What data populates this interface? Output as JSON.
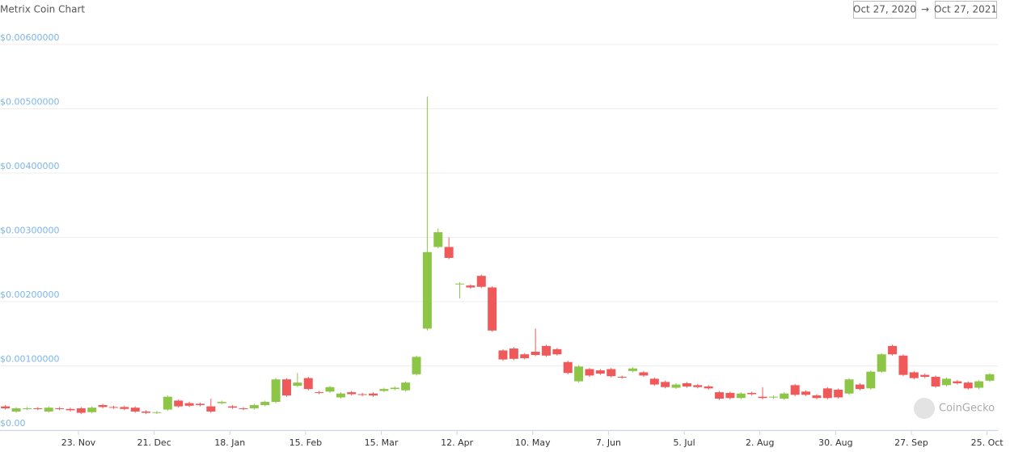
{
  "chart_data": {
    "type": "candlestick",
    "title": "Metrix Coin Chart",
    "range_from": "Oct 27, 2020",
    "range_arrow": "→",
    "range_to": "Oct 27, 2021",
    "watermark": "CoinGecko",
    "up_color": "#8dc647",
    "down_color": "#ef5959",
    "grid": true,
    "x": [
      "2020-10-27",
      "2020-10-31",
      "2020-11-04",
      "2020-11-08",
      "2020-11-12",
      "2020-11-16",
      "2020-11-20",
      "2020-11-24",
      "2020-11-28",
      "2020-12-02",
      "2020-12-06",
      "2020-12-10",
      "2020-12-14",
      "2020-12-18",
      "2020-12-22",
      "2020-12-26",
      "2020-12-30",
      "2021-01-03",
      "2021-01-07",
      "2021-01-11",
      "2021-01-15",
      "2021-01-19",
      "2021-01-23",
      "2021-01-27",
      "2021-01-31",
      "2021-02-04",
      "2021-02-08",
      "2021-02-12",
      "2021-02-16",
      "2021-02-20",
      "2021-02-24",
      "2021-02-28",
      "2021-03-04",
      "2021-03-08",
      "2021-03-12",
      "2021-03-16",
      "2021-03-20",
      "2021-03-24",
      "2021-03-28",
      "2021-04-01",
      "2021-04-05",
      "2021-04-09",
      "2021-04-13",
      "2021-04-17",
      "2021-04-21",
      "2021-04-25",
      "2021-04-29",
      "2021-05-03",
      "2021-05-07",
      "2021-05-11",
      "2021-05-15",
      "2021-05-19",
      "2021-05-23",
      "2021-05-27",
      "2021-05-31",
      "2021-06-04",
      "2021-06-08",
      "2021-06-12",
      "2021-06-16",
      "2021-06-20",
      "2021-06-24",
      "2021-06-28",
      "2021-07-02",
      "2021-07-06",
      "2021-07-10",
      "2021-07-14",
      "2021-07-18",
      "2021-07-22",
      "2021-07-26",
      "2021-07-30",
      "2021-08-03",
      "2021-08-07",
      "2021-08-11",
      "2021-08-15",
      "2021-08-19",
      "2021-08-23",
      "2021-08-27",
      "2021-08-31",
      "2021-09-04",
      "2021-09-08",
      "2021-09-12",
      "2021-09-16",
      "2021-09-20",
      "2021-09-24",
      "2021-09-28",
      "2021-10-02",
      "2021-10-06",
      "2021-10-10",
      "2021-10-14",
      "2021-10-18",
      "2021-10-22",
      "2021-10-26"
    ],
    "open": [
      0.00037,
      0.00029,
      0.00033,
      0.00034,
      0.00029,
      0.00034,
      0.00033,
      0.00034,
      0.00028,
      0.00039,
      0.00036,
      0.00036,
      0.00035,
      0.00029,
      0.00027,
      0.00032,
      0.00046,
      0.00042,
      0.00041,
      0.00037,
      0.00042,
      0.00037,
      0.00034,
      0.00034,
      0.00039,
      0.00044,
      0.00079,
      0.00069,
      0.00081,
      0.00059,
      0.0006,
      0.00051,
      0.00059,
      0.00056,
      0.00057,
      0.00061,
      0.00064,
      0.00062,
      0.00087,
      0.00158,
      0.00285,
      0.00285,
      0.00227,
      0.00225,
      0.0024,
      0.00222,
      0.00124,
      0.00127,
      0.00118,
      0.00122,
      0.00131,
      0.00126,
      0.00106,
      0.00076,
      0.00095,
      0.00093,
      0.00095,
      0.00083,
      0.00092,
      0.0009,
      0.0008,
      0.00075,
      0.00066,
      0.00073,
      0.0007,
      0.00068,
      0.00059,
      0.00058,
      0.0005,
      0.00058,
      0.00052,
      0.00051,
      0.00049,
      0.0007,
      0.0006,
      0.00054,
      0.00065,
      0.00063,
      0.00057,
      0.00071,
      0.00065,
      0.00091,
      0.00131,
      0.00116,
      0.0009,
      0.00086,
      0.00083,
      0.0007,
      0.00076,
      0.00074,
      0.00066,
      0.00077
    ],
    "high": [
      0.00039,
      0.00036,
      0.00036,
      0.00036,
      0.00037,
      0.00036,
      0.00035,
      0.00036,
      0.00037,
      0.00041,
      0.00038,
      0.00038,
      0.00037,
      0.00031,
      0.0003,
      0.00054,
      0.00048,
      0.00044,
      0.00043,
      0.00049,
      0.00046,
      0.00039,
      0.00036,
      0.00041,
      0.00046,
      0.00081,
      0.00081,
      0.00089,
      0.00083,
      0.00061,
      0.00069,
      0.00059,
      0.00061,
      0.00058,
      0.00059,
      0.00066,
      0.00068,
      0.00076,
      0.00116,
      0.00519,
      0.00314,
      0.003,
      0.0023,
      0.00227,
      0.00242,
      0.00224,
      0.00126,
      0.00129,
      0.0012,
      0.00158,
      0.00133,
      0.00128,
      0.00108,
      0.00101,
      0.00097,
      0.00095,
      0.00097,
      0.00085,
      0.00098,
      0.00092,
      0.00082,
      0.00077,
      0.00073,
      0.00075,
      0.00072,
      0.0007,
      0.00061,
      0.0006,
      0.00059,
      0.0006,
      0.00067,
      0.00054,
      0.00059,
      0.00072,
      0.00062,
      0.00056,
      0.00067,
      0.00065,
      0.00081,
      0.00073,
      0.00093,
      0.0012,
      0.00133,
      0.00118,
      0.00092,
      0.00088,
      0.00085,
      0.00082,
      0.00078,
      0.00076,
      0.00078,
      0.00089
    ],
    "low": [
      0.00032,
      0.00027,
      0.00031,
      0.00031,
      0.00027,
      0.00031,
      0.00029,
      0.00025,
      0.00026,
      0.00034,
      0.00033,
      0.00031,
      0.00027,
      0.00025,
      0.00025,
      0.0003,
      0.00035,
      0.00036,
      0.00037,
      0.00027,
      0.0004,
      0.00033,
      0.00031,
      0.00032,
      0.00037,
      0.00042,
      0.00052,
      0.00067,
      0.00062,
      0.00056,
      0.00058,
      0.00049,
      0.00054,
      0.00053,
      0.00052,
      0.00059,
      0.00062,
      0.0006,
      0.00085,
      0.00155,
      0.00283,
      0.00266,
      0.00205,
      0.0022,
      0.00221,
      0.00153,
      0.00108,
      0.00109,
      0.0011,
      0.00115,
      0.00114,
      0.00116,
      0.00087,
      0.00074,
      0.00083,
      0.00086,
      0.00082,
      0.0008,
      0.0009,
      0.00083,
      0.00069,
      0.00065,
      0.00064,
      0.00066,
      0.00065,
      0.00063,
      0.00047,
      0.00048,
      0.00048,
      0.00054,
      0.00048,
      0.00049,
      0.00047,
      0.00053,
      0.00053,
      0.00048,
      0.00048,
      0.00049,
      0.00055,
      0.00062,
      0.00063,
      0.00089,
      0.00116,
      0.00084,
      0.00079,
      0.00081,
      0.00066,
      0.00068,
      0.00071,
      0.00063,
      0.00064,
      0.00075
    ],
    "close": [
      0.00034,
      0.00034,
      0.00034,
      0.00033,
      0.00035,
      0.00033,
      0.00031,
      0.00027,
      0.00035,
      0.00036,
      0.00035,
      0.00033,
      0.00029,
      0.00027,
      0.00028,
      0.00052,
      0.00037,
      0.00038,
      0.00039,
      0.00029,
      0.00044,
      0.00035,
      0.00033,
      0.00039,
      0.00044,
      0.00079,
      0.00054,
      0.00074,
      0.00064,
      0.00058,
      0.00067,
      0.00057,
      0.00056,
      0.00055,
      0.00054,
      0.00064,
      0.00066,
      0.00074,
      0.00114,
      0.00277,
      0.00308,
      0.00268,
      0.00228,
      0.00222,
      0.00223,
      0.00155,
      0.0011,
      0.00111,
      0.00112,
      0.00117,
      0.00116,
      0.00118,
      0.00089,
      0.00099,
      0.00085,
      0.00088,
      0.00084,
      0.00082,
      0.00096,
      0.00085,
      0.00071,
      0.00067,
      0.00071,
      0.00068,
      0.00067,
      0.00065,
      0.00049,
      0.0005,
      0.00057,
      0.00056,
      0.0005,
      0.00052,
      0.00057,
      0.00055,
      0.00055,
      0.0005,
      0.0005,
      0.00051,
      0.00079,
      0.00064,
      0.00091,
      0.00118,
      0.00118,
      0.00086,
      0.00081,
      0.00083,
      0.00068,
      0.0008,
      0.00073,
      0.00065,
      0.00076,
      0.00087
    ],
    "xlim": [
      "2020-10-25",
      "2021-10-29"
    ],
    "xticks": [
      {
        "value": "2020-11-23",
        "label": "23. Nov"
      },
      {
        "value": "2020-12-21",
        "label": "21. Dec"
      },
      {
        "value": "2021-01-18",
        "label": "18. Jan"
      },
      {
        "value": "2021-02-15",
        "label": "15. Feb"
      },
      {
        "value": "2021-03-15",
        "label": "15. Mar"
      },
      {
        "value": "2021-04-12",
        "label": "12. Apr"
      },
      {
        "value": "2021-05-10",
        "label": "10. May"
      },
      {
        "value": "2021-06-07",
        "label": "7. Jun"
      },
      {
        "value": "2021-07-05",
        "label": "5. Jul"
      },
      {
        "value": "2021-08-02",
        "label": "2. Aug"
      },
      {
        "value": "2021-08-30",
        "label": "30. Aug"
      },
      {
        "value": "2021-09-27",
        "label": "27. Sep"
      },
      {
        "value": "2021-10-25",
        "label": "25. Oct"
      }
    ],
    "ylim": [
      0,
      0.006
    ],
    "yticks": [
      {
        "value": 0,
        "label": "$0.00"
      },
      {
        "value": 0.001,
        "label": "$0.00100000"
      },
      {
        "value": 0.002,
        "label": "$0.00200000"
      },
      {
        "value": 0.003,
        "label": "$0.00300000"
      },
      {
        "value": 0.004,
        "label": "$0.00400000"
      },
      {
        "value": 0.005,
        "label": "$0.00500000"
      },
      {
        "value": 0.006,
        "label": "$0.00600000"
      }
    ]
  }
}
